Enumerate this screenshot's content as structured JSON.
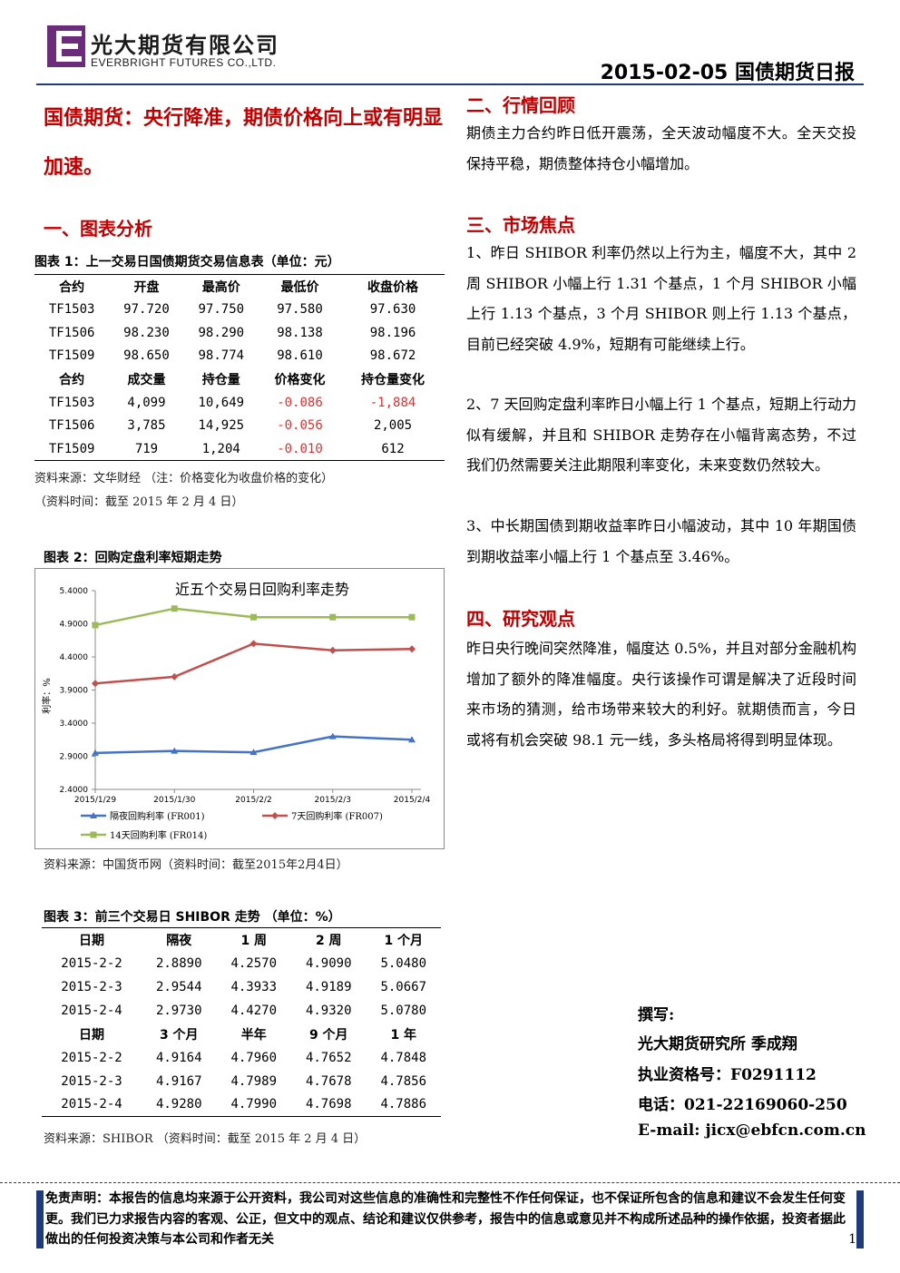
{
  "header": {
    "company_cn": "光大期货有限公司",
    "company_en": "EVERBRIGHT FUTURES CO.,LTD.",
    "report_title": "2015-02-05 国债期货日报"
  },
  "headline": "国债期货：央行降准，期债价格向上或有明显加速。",
  "sections": {
    "s1": "一、图表分析",
    "s2": "二、行情回顾",
    "s3": "三、市场焦点",
    "s4": "四、研究观点"
  },
  "table1": {
    "caption": "图表 1：上一交易日国债期货交易信息表（单位：元）",
    "header1": [
      "合约",
      "开盘",
      "最高价",
      "最低价",
      "收盘价格"
    ],
    "rows1": [
      [
        "TF1503",
        "97.720",
        "97.750",
        "97.580",
        "97.630"
      ],
      [
        "TF1506",
        "98.230",
        "98.290",
        "98.138",
        "98.196"
      ],
      [
        "TF1509",
        "98.650",
        "98.774",
        "98.610",
        "98.672"
      ]
    ],
    "header2": [
      "合约",
      "成交量",
      "持仓量",
      "价格变化",
      "持仓量变化"
    ],
    "rows2": [
      [
        "TF1503",
        "4,099",
        "10,649",
        "-0.086",
        "-1,884"
      ],
      [
        "TF1506",
        "3,785",
        "14,925",
        "-0.056",
        "2,005"
      ],
      [
        "TF1509",
        "719",
        "1,204",
        "-0.010",
        "612"
      ]
    ],
    "source": "资料来源：文华财经 （注：价格变化为收盘价格的变化）",
    "source_time": "（资料时间：截至 2015 年 2 月 4 日）"
  },
  "chart": {
    "caption": "图表 2：回购定盘利率短期走势",
    "source": "资料来源：中国货币网（资料时间：截至2015年2月4日）",
    "colors": {
      "overnight": "#4472c4",
      "d7": "#c0504d",
      "d14": "#9bbb59"
    }
  },
  "chart_data": {
    "type": "line",
    "title": "近五个交易日回购利率走势",
    "ylabel": "利率：%",
    "categories": [
      "2015/1/29",
      "2015/1/30",
      "2015/2/2",
      "2015/2/3",
      "2015/2/4"
    ],
    "ylim": [
      2.4,
      5.4
    ],
    "yticks": [
      "5.4000",
      "4.9000",
      "4.4000",
      "3.9000",
      "3.4000",
      "2.9000",
      "2.4000"
    ],
    "series": [
      {
        "name": "隔夜回购利率 (FR001)",
        "values": [
          2.95,
          2.98,
          2.96,
          3.2,
          3.15
        ]
      },
      {
        "name": "7天回购利率 (FR007)",
        "values": [
          4.0,
          4.1,
          4.6,
          4.5,
          4.52
        ]
      },
      {
        "name": "14天回购利率 (FR014)",
        "values": [
          4.88,
          5.13,
          5.0,
          5.0,
          5.0
        ]
      }
    ],
    "grid": false,
    "legend": "bottom"
  },
  "table3": {
    "caption": "图表 3：前三个交易日 SHIBOR 走势 （单位：%）",
    "header1": [
      "日期",
      "隔夜",
      "1 周",
      "2 周",
      "1 个月"
    ],
    "rows1": [
      [
        "2015-2-2",
        "2.8890",
        "4.2570",
        "4.9090",
        "5.0480"
      ],
      [
        "2015-2-3",
        "2.9544",
        "4.3933",
        "4.9189",
        "5.0667"
      ],
      [
        "2015-2-4",
        "2.9730",
        "4.4270",
        "4.9320",
        "5.0780"
      ]
    ],
    "header2": [
      "日期",
      "3 个月",
      "半年",
      "9 个月",
      "1 年"
    ],
    "rows2": [
      [
        "2015-2-2",
        "4.9164",
        "4.7960",
        "4.7652",
        "4.7848"
      ],
      [
        "2015-2-3",
        "4.9167",
        "4.7989",
        "4.7678",
        "4.7856"
      ],
      [
        "2015-2-4",
        "4.9280",
        "4.7990",
        "4.7698",
        "4.7886"
      ]
    ],
    "source": "资料来源：SHIBOR （资料时间：截至 2015 年 2 月 4 日）"
  },
  "review": "期债主力合约昨日低开震荡，全天波动幅度不大。全天交投保持平稳，期债整体持仓小幅增加。",
  "focus": [
    "1、昨日 SHIBOR 利率仍然以上行为主，幅度不大，其中 2 周 SHIBOR 小幅上行 1.31 个基点，1 个月 SHIBOR 小幅上行 1.13 个基点，3 个月 SHIBOR 则上行 1.13 个基点，目前已经突破 4.9%，短期有可能继续上行。",
    "2、7 天回购定盘利率昨日小幅上行 1 个基点，短期上行动力似有缓解，并且和 SHIBOR 走势存在小幅背离态势，不过我们仍然需要关注此期限利率变化，未来变数仍然较大。",
    "3、中长期国债到期收益率昨日小幅波动，其中 10 年期国债到期收益率小幅上行 1 个基点至 3.46%。"
  ],
  "opinion": "昨日央行晚间突然降准，幅度达 0.5%，并且对部分金融机构增加了额外的降准幅度。央行该操作可谓是解决了近段时间来市场的猜测，给市场带来较大的利好。就期债而言，今日或将有机会突破 98.1 元一线，多头格局将得到明显体现。",
  "author": {
    "label": "撰写:",
    "name": "光大期货研究所 季成翔",
    "license": "执业资格号：F0291112",
    "phone": "电话：021-22169060-250",
    "email": "E-mail: jicx@ebfcn.com.cn"
  },
  "disclaimer": "免责声明：本报告的信息均来源于公开资料，我公司对这些信息的准确性和完整性不作任何保证，也不保证所包含的信息和建议不会发生任何变更。我们已力求报告内容的客观、公正，但文中的观点、结论和建议仅供参考，报告中的信息或意见并不构成所述品种的操作依据，投资者据此做出的任何投资决策与本公司和作者无关",
  "page_number": "1"
}
